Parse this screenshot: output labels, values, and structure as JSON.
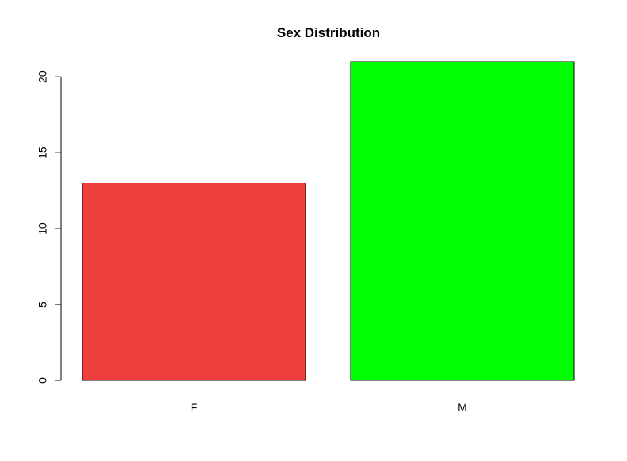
{
  "chart_data": {
    "type": "bar",
    "title": "Sex Distribution",
    "categories": [
      "F",
      "M"
    ],
    "values": [
      13,
      21
    ],
    "colors": [
      "#EF3E3E",
      "#00FF00"
    ],
    "xlabel": "",
    "ylabel": "",
    "ylim": [
      0,
      21
    ],
    "yticks": [
      0,
      5,
      10,
      15,
      20
    ],
    "grid": false
  }
}
